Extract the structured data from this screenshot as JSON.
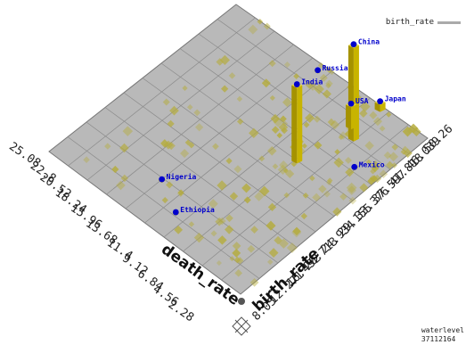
{
  "chart_data": {
    "type": "bar",
    "legend": {
      "label": "birth_rate",
      "position": "top-right",
      "color": "#aaaaaa"
    },
    "axes": {
      "left": {
        "label": "death_rate",
        "ticks": [
          "25.08",
          "22.8",
          "20.52",
          "18.24",
          "15.96",
          "13.68",
          "11.4",
          "9.12",
          "6.84",
          "4.56",
          "2.28"
        ]
      },
      "right": {
        "label": "birth_rate",
        "ticks": [
          "50.26",
          "46.039",
          "41.818",
          "37.597",
          "33.376",
          "29.155",
          "24.934",
          "20.713",
          "16.492",
          "12.271",
          "8.05"
        ]
      }
    },
    "labeled_points": [
      {
        "name": "Ethiopia",
        "death_rate": 12.5,
        "birth_rate": 45.5
      },
      {
        "name": "Nigeria",
        "death_rate": 15.9,
        "birth_rate": 42.2
      },
      {
        "name": "India",
        "death_rate": 8.9,
        "birth_rate": 25.0
      },
      {
        "name": "China",
        "death_rate": 7.0,
        "birth_rate": 15.8
      },
      {
        "name": "Mexico",
        "death_rate": 4.7,
        "birth_rate": 20.0
      },
      {
        "name": "Russia",
        "death_rate": 14.6,
        "birth_rate": 9.5
      },
      {
        "name": "USA",
        "death_rate": 8.1,
        "birth_rate": 14.3
      },
      {
        "name": "Japan",
        "death_rate": 7.6,
        "birth_rate": 8.7
      }
    ],
    "tall_bars": [
      "China",
      "India",
      "USA",
      "Japan"
    ],
    "waterlevel": {
      "label": "waterlevel",
      "value": "37112164"
    },
    "colors": {
      "plane": "#b9b9b9",
      "grid": "#8a8a8a",
      "bar": "#c8b400",
      "point": "#0000cc",
      "label": "#0000cc"
    }
  }
}
